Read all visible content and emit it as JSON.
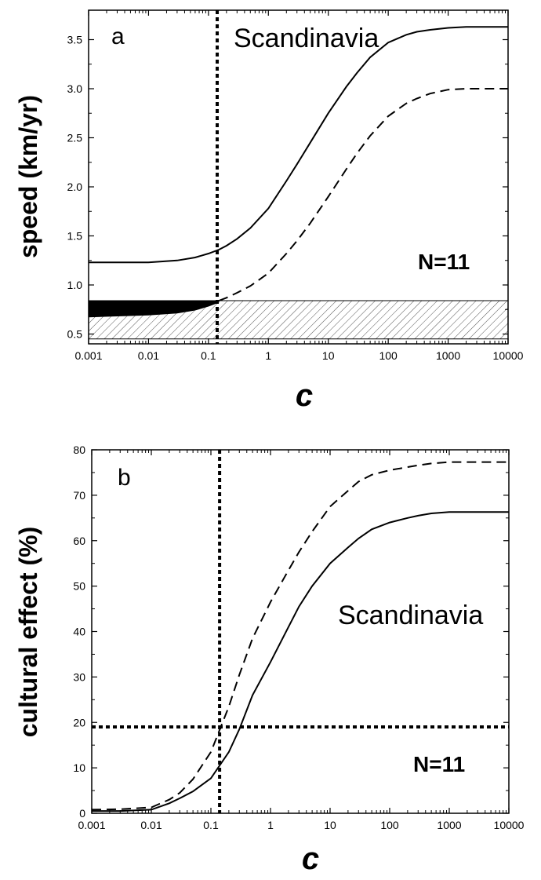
{
  "chart_data": [
    {
      "type": "line",
      "panel_label": "a",
      "annotation": "Scandinavia",
      "n_label": "N=11",
      "xlabel": "c",
      "ylabel": "speed (km/yr)",
      "xscale": "log",
      "xlim": [
        0.001,
        10000
      ],
      "ylim": [
        0.4,
        3.8
      ],
      "xticks": [
        "0.001",
        "0.01",
        "0.1",
        "1",
        "10",
        "100",
        "1000",
        "10000"
      ],
      "yticks": [
        "0.5",
        "1.0",
        "1.5",
        "2.0",
        "2.5",
        "3.0",
        "3.5"
      ],
      "series": [
        {
          "style": "solid",
          "x": [
            0.001,
            0.003,
            0.01,
            0.03,
            0.06,
            0.1,
            0.15,
            0.2,
            0.3,
            0.5,
            1,
            2,
            3,
            5,
            10,
            20,
            30,
            50,
            100,
            200,
            300,
            500,
            1000,
            2000,
            10000
          ],
          "y": [
            1.23,
            1.23,
            1.23,
            1.25,
            1.28,
            1.32,
            1.36,
            1.4,
            1.47,
            1.58,
            1.78,
            2.06,
            2.23,
            2.45,
            2.75,
            3.02,
            3.16,
            3.32,
            3.47,
            3.55,
            3.58,
            3.6,
            3.62,
            3.63,
            3.63
          ]
        },
        {
          "style": "dashed",
          "x": [
            0.15,
            0.2,
            0.3,
            0.5,
            1,
            2,
            3,
            5,
            10,
            20,
            30,
            50,
            100,
            200,
            300,
            500,
            1000,
            2000,
            10000
          ],
          "y": [
            0.84,
            0.87,
            0.92,
            0.99,
            1.12,
            1.32,
            1.45,
            1.63,
            1.9,
            2.18,
            2.34,
            2.52,
            2.72,
            2.85,
            2.9,
            2.95,
            2.99,
            3.0,
            3.0
          ]
        }
      ],
      "filled_band": {
        "x": [
          0.001,
          0.003,
          0.01,
          0.03,
          0.06,
          0.1,
          0.15
        ],
        "lower": [
          0.67,
          0.68,
          0.69,
          0.71,
          0.74,
          0.78,
          0.82
        ],
        "upper": [
          0.84,
          0.84,
          0.84,
          0.84,
          0.84,
          0.84,
          0.84
        ]
      },
      "hatched_band": {
        "x": [
          0.001,
          10000
        ],
        "lower": 0.45,
        "upper": 0.84
      },
      "vertical_reference_x": 0.14
    },
    {
      "type": "line",
      "panel_label": "b",
      "annotation": "Scandinavia",
      "n_label": "N=11",
      "xlabel": "c",
      "ylabel": "cultural effect (%)",
      "xscale": "log",
      "xlim": [
        0.001,
        10000
      ],
      "ylim": [
        0,
        80
      ],
      "xticks": [
        "0.001",
        "0.01",
        "0.1",
        "1",
        "10",
        "100",
        "1000",
        "10000"
      ],
      "yticks": [
        "0",
        "10",
        "20",
        "30",
        "40",
        "50",
        "60",
        "70",
        "80"
      ],
      "series": [
        {
          "style": "solid",
          "x": [
            0.001,
            0.003,
            0.01,
            0.02,
            0.03,
            0.05,
            0.1,
            0.2,
            0.3,
            0.5,
            1,
            2,
            3,
            5,
            10,
            20,
            30,
            50,
            100,
            200,
            300,
            500,
            1000,
            2000,
            10000
          ],
          "y": [
            0.5,
            0.5,
            0.8,
            2.2,
            3.3,
            4.8,
            7.7,
            13.5,
            18.5,
            26,
            33.3,
            41,
            45.5,
            50,
            55,
            58.5,
            60.5,
            62.5,
            64,
            65,
            65.5,
            66,
            66.3,
            66.3,
            66.3
          ]
        },
        {
          "style": "dashed",
          "x": [
            0.001,
            0.003,
            0.01,
            0.02,
            0.03,
            0.05,
            0.1,
            0.2,
            0.3,
            0.5,
            1,
            2,
            3,
            5,
            10,
            20,
            30,
            50,
            100,
            200,
            300,
            500,
            1000,
            2000,
            10000
          ],
          "y": [
            0.8,
            0.9,
            1.3,
            3.0,
            4.5,
            7.5,
            13.5,
            23.5,
            30.5,
            38.5,
            46.5,
            53.5,
            57.5,
            62,
            67.5,
            71,
            73,
            74.5,
            75.5,
            76.2,
            76.6,
            77,
            77.3,
            77.3,
            77.3
          ]
        }
      ],
      "vertical_reference_x": 0.14,
      "horizontal_reference_y": 19
    }
  ]
}
